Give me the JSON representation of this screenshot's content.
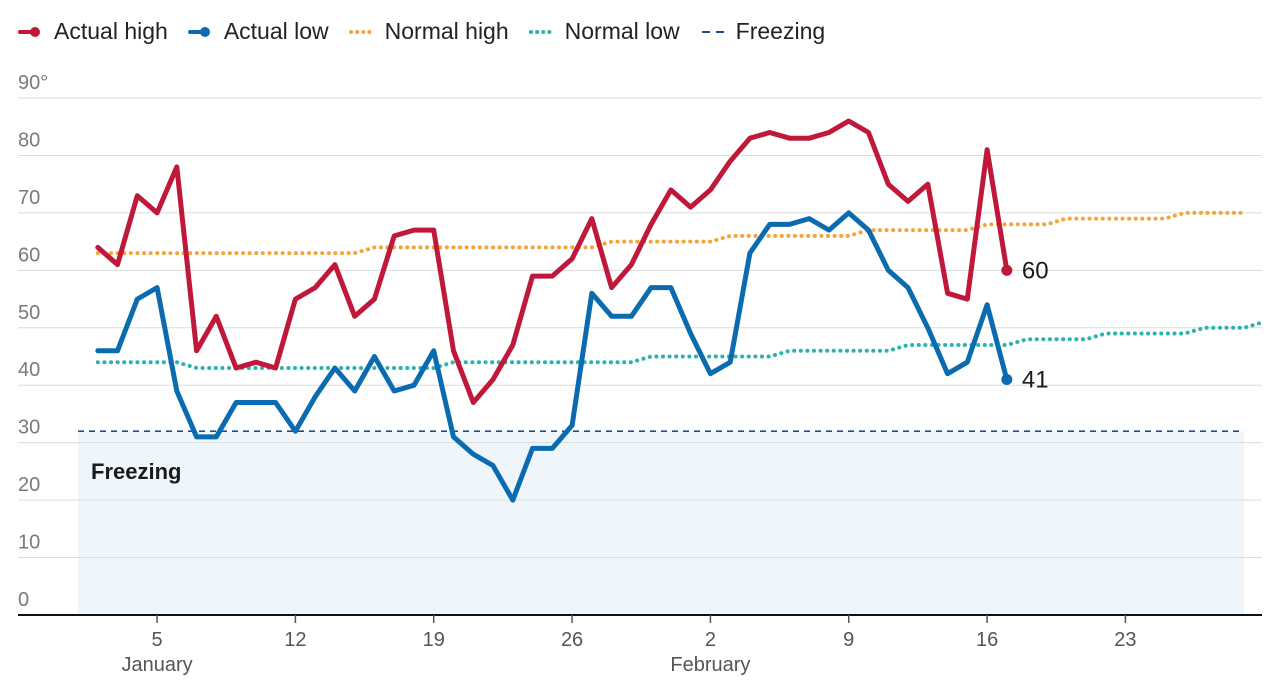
{
  "chart_data": {
    "type": "line",
    "y_axis": {
      "min": 0,
      "max": 90,
      "ticks": [
        0,
        10,
        20,
        30,
        40,
        50,
        60,
        70,
        80,
        90
      ],
      "top_tick_label": "90°"
    },
    "x_axis": {
      "start": "2024-01-01",
      "end": "2024-02-29",
      "ticks": [
        {
          "date": "2024-01-05",
          "label": "5"
        },
        {
          "date": "2024-01-12",
          "label": "12"
        },
        {
          "date": "2024-01-19",
          "label": "19"
        },
        {
          "date": "2024-01-26",
          "label": "26"
        },
        {
          "date": "2024-02-02",
          "label": "2"
        },
        {
          "date": "2024-02-09",
          "label": "9"
        },
        {
          "date": "2024-02-16",
          "label": "16"
        },
        {
          "date": "2024-02-23",
          "label": "23"
        }
      ],
      "month_labels": [
        {
          "date": "2024-01-05",
          "label": "January"
        },
        {
          "date": "2024-02-02",
          "label": "February"
        }
      ]
    },
    "legend": [
      {
        "key": "actual_high",
        "label": "Actual high"
      },
      {
        "key": "actual_low",
        "label": "Actual low"
      },
      {
        "key": "normal_high",
        "label": "Normal high"
      },
      {
        "key": "normal_low",
        "label": "Normal low"
      },
      {
        "key": "freezing",
        "label": "Freezing"
      }
    ],
    "freezing": {
      "value": 32,
      "label": "Freezing",
      "color": "#1f4e8c",
      "band_color": "#eef6fc"
    },
    "series": [
      {
        "key": "actual_high",
        "name": "Actual high",
        "color": "#c0183a",
        "style": "solid",
        "start": "2024-01-02",
        "values": [
          64,
          61,
          73,
          70,
          78,
          46,
          52,
          43,
          44,
          43,
          55,
          57,
          61,
          52,
          55,
          66,
          67,
          67,
          46,
          37,
          41,
          47,
          59,
          59,
          62,
          69,
          57,
          61,
          68,
          74,
          71,
          74,
          79,
          83,
          84,
          83,
          83,
          84,
          86,
          84,
          75,
          72,
          75,
          56,
          55,
          81,
          60
        ],
        "end_label": "60"
      },
      {
        "key": "actual_low",
        "name": "Actual low",
        "color": "#0b6bb0",
        "style": "solid",
        "start": "2024-01-02",
        "values": [
          46,
          46,
          55,
          57,
          39,
          31,
          31,
          37,
          37,
          37,
          32,
          38,
          43,
          39,
          45,
          39,
          40,
          46,
          31,
          28,
          26,
          20,
          29,
          29,
          33,
          56,
          52,
          52,
          57,
          57,
          49,
          42,
          44,
          63,
          68,
          68,
          69,
          67,
          70,
          67,
          60,
          57,
          50,
          42,
          44,
          54,
          41
        ],
        "end_label": "41"
      },
      {
        "key": "normal_high",
        "name": "Normal high",
        "color": "#f3a53b",
        "style": "dotted",
        "start": "2024-01-02",
        "values": [
          63,
          63,
          63,
          63,
          63,
          63,
          63,
          63,
          63,
          63,
          63,
          63,
          63,
          63,
          64,
          64,
          64,
          64,
          64,
          64,
          64,
          64,
          64,
          64,
          64,
          64,
          65,
          65,
          65,
          65,
          65,
          65,
          66,
          66,
          66,
          66,
          66,
          66,
          66,
          67,
          67,
          67,
          67,
          67,
          67,
          68,
          68,
          68,
          68,
          69,
          69,
          69,
          69,
          69,
          69,
          70,
          70,
          70,
          70
        ]
      },
      {
        "key": "normal_low",
        "name": "Normal low",
        "color": "#2bb3b0",
        "style": "dotted",
        "start": "2024-01-02",
        "values": [
          44,
          44,
          44,
          44,
          44,
          43,
          43,
          43,
          43,
          43,
          43,
          43,
          43,
          43,
          43,
          43,
          43,
          43,
          44,
          44,
          44,
          44,
          44,
          44,
          44,
          44,
          44,
          44,
          45,
          45,
          45,
          45,
          45,
          45,
          45,
          46,
          46,
          46,
          46,
          46,
          46,
          47,
          47,
          47,
          47,
          47,
          47,
          48,
          48,
          48,
          48,
          49,
          49,
          49,
          49,
          49,
          50,
          50,
          50,
          51
        ]
      }
    ],
    "grid": true
  }
}
